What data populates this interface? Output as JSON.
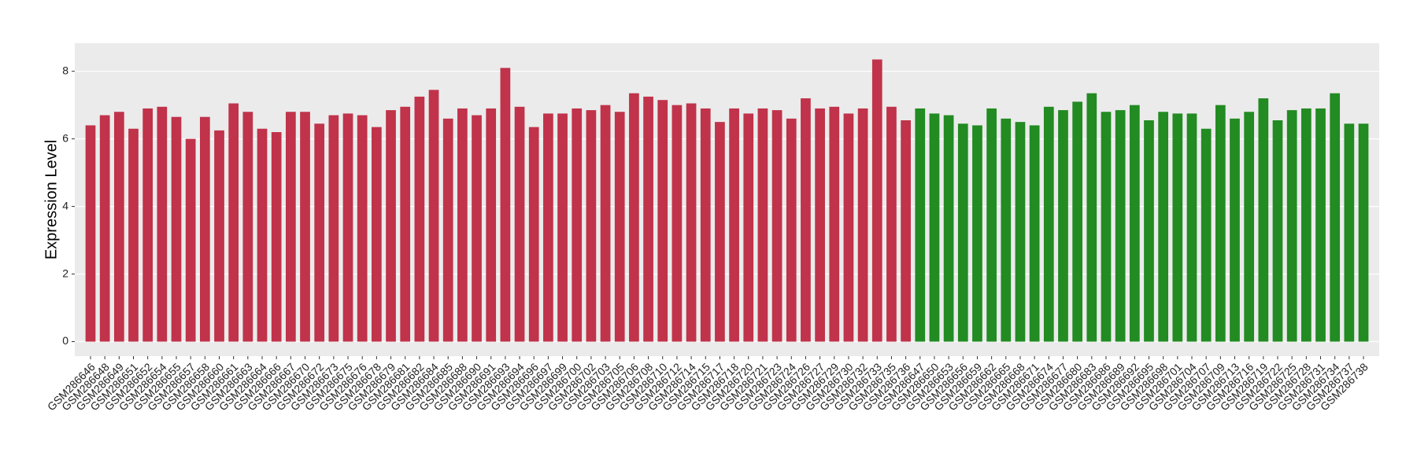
{
  "chart_data": {
    "type": "bar",
    "y_label": "Expression Level",
    "categories": [
      "GSM286646",
      "GSM286648",
      "GSM286649",
      "GSM286651",
      "GSM286652",
      "GSM286654",
      "GSM286655",
      "GSM286657",
      "GSM286658",
      "GSM286660",
      "GSM286661",
      "GSM286663",
      "GSM286664",
      "GSM286666",
      "GSM286667",
      "GSM286670",
      "GSM286672",
      "GSM286673",
      "GSM286675",
      "GSM286676",
      "GSM286678",
      "GSM286679",
      "GSM286681",
      "GSM286682",
      "GSM286684",
      "GSM286685",
      "GSM286688",
      "GSM286690",
      "GSM286691",
      "GSM286693",
      "GSM286694",
      "GSM286696",
      "GSM286697",
      "GSM286699",
      "GSM286700",
      "GSM286702",
      "GSM286703",
      "GSM286705",
      "GSM286706",
      "GSM286708",
      "GSM286710",
      "GSM286712",
      "GSM286714",
      "GSM286715",
      "GSM286717",
      "GSM286718",
      "GSM286720",
      "GSM286721",
      "GSM286723",
      "GSM286724",
      "GSM286726",
      "GSM286727",
      "GSM286729",
      "GSM286730",
      "GSM286732",
      "GSM286733",
      "GSM286735",
      "GSM286736",
      "GSM286647",
      "GSM286650",
      "GSM286653",
      "GSM286656",
      "GSM286659",
      "GSM286662",
      "GSM286665",
      "GSM286668",
      "GSM286671",
      "GSM286674",
      "GSM286677",
      "GSM286680",
      "GSM286683",
      "GSM286686",
      "GSM286689",
      "GSM286692",
      "GSM286695",
      "GSM286698",
      "GSM286701",
      "GSM286704",
      "GSM286707",
      "GSM286709",
      "GSM286713",
      "GSM286716",
      "GSM286719",
      "GSM286722",
      "GSM286725",
      "GSM286728",
      "GSM286731",
      "GSM286734",
      "GSM286737",
      "GSM286738"
    ],
    "values": [
      6.4,
      6.7,
      6.8,
      6.3,
      6.9,
      6.95,
      6.65,
      6.0,
      6.65,
      6.25,
      7.05,
      6.8,
      6.3,
      6.2,
      6.8,
      6.8,
      6.45,
      6.7,
      6.75,
      6.7,
      6.35,
      6.85,
      6.95,
      7.25,
      7.45,
      6.6,
      6.9,
      6.7,
      6.9,
      8.1,
      6.95,
      6.35,
      6.75,
      6.75,
      6.9,
      6.85,
      7.0,
      6.8,
      7.35,
      7.25,
      7.15,
      7.0,
      7.05,
      6.9,
      6.5,
      6.9,
      6.75,
      6.9,
      6.85,
      6.6,
      7.2,
      6.9,
      6.95,
      6.75,
      6.9,
      8.35,
      6.95,
      6.55,
      6.9,
      6.75,
      6.7,
      6.45,
      6.4,
      6.9,
      6.6,
      6.5,
      6.4,
      6.95,
      6.85,
      7.1,
      7.35,
      6.8,
      6.85,
      7.0,
      6.55,
      6.8,
      6.75,
      6.75,
      6.3,
      7.0,
      6.6,
      6.8,
      7.2,
      6.55,
      6.85,
      6.9,
      6.9,
      7.35,
      6.45,
      6.45
    ],
    "colors": [
      "#c0334a",
      "#c0334a",
      "#c0334a",
      "#c0334a",
      "#c0334a",
      "#c0334a",
      "#c0334a",
      "#c0334a",
      "#c0334a",
      "#c0334a",
      "#c0334a",
      "#c0334a",
      "#c0334a",
      "#c0334a",
      "#c0334a",
      "#c0334a",
      "#c0334a",
      "#c0334a",
      "#c0334a",
      "#c0334a",
      "#c0334a",
      "#c0334a",
      "#c0334a",
      "#c0334a",
      "#c0334a",
      "#c0334a",
      "#c0334a",
      "#c0334a",
      "#c0334a",
      "#c0334a",
      "#c0334a",
      "#c0334a",
      "#c0334a",
      "#c0334a",
      "#c0334a",
      "#c0334a",
      "#c0334a",
      "#c0334a",
      "#c0334a",
      "#c0334a",
      "#c0334a",
      "#c0334a",
      "#c0334a",
      "#c0334a",
      "#c0334a",
      "#c0334a",
      "#c0334a",
      "#c0334a",
      "#c0334a",
      "#c0334a",
      "#c0334a",
      "#c0334a",
      "#c0334a",
      "#c0334a",
      "#c0334a",
      "#c0334a",
      "#c0334a",
      "#c0334a",
      "#228b22",
      "#228b22",
      "#228b22",
      "#228b22",
      "#228b22",
      "#228b22",
      "#228b22",
      "#228b22",
      "#228b22",
      "#228b22",
      "#228b22",
      "#228b22",
      "#228b22",
      "#228b22",
      "#228b22",
      "#228b22",
      "#228b22",
      "#228b22",
      "#228b22",
      "#228b22",
      "#228b22",
      "#228b22",
      "#228b22",
      "#228b22",
      "#228b22",
      "#228b22",
      "#228b22",
      "#228b22",
      "#228b22",
      "#228b22",
      "#228b22",
      "#228b22"
    ],
    "ylim": [
      -0.43,
      8.83
    ],
    "yticks": [
      0,
      2,
      4,
      6,
      8
    ],
    "grid": true
  }
}
